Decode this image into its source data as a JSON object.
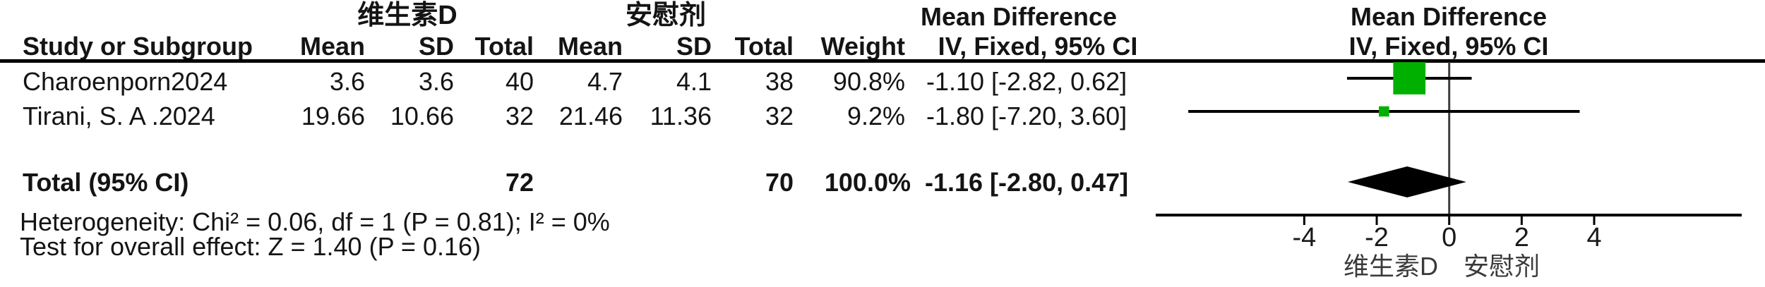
{
  "table": {
    "group_headers": {
      "experimental": "维生素D",
      "control": "安慰剂",
      "effect": "Mean Difference",
      "plot_effect": "Mean Difference"
    },
    "column_headers": {
      "study": "Study or Subgroup",
      "exp_mean": "Mean",
      "exp_sd": "SD",
      "exp_total": "Total",
      "ctrl_mean": "Mean",
      "ctrl_sd": "SD",
      "ctrl_total": "Total",
      "weight": "Weight",
      "effect_ci": "IV, Fixed, 95% CI",
      "plot_ci": "IV, Fixed, 95% CI"
    },
    "rows": [
      {
        "study": "Charoenporn2024",
        "exp_mean": "3.6",
        "exp_sd": "3.6",
        "exp_total": "40",
        "ctrl_mean": "4.7",
        "ctrl_sd": "4.1",
        "ctrl_total": "38",
        "weight": "90.8%",
        "ci_text": "-1.10 [-2.82, 0.62]"
      },
      {
        "study": "Tirani, S. A .2024",
        "exp_mean": "19.66",
        "exp_sd": "10.66",
        "exp_total": "32",
        "ctrl_mean": "21.46",
        "ctrl_sd": "11.36",
        "ctrl_total": "32",
        "weight": "9.2%",
        "ci_text": "-1.80 [-7.20, 3.60]"
      }
    ],
    "total_row": {
      "label": "Total (95% CI)",
      "exp_total": "72",
      "ctrl_total": "70",
      "weight": "100.0%",
      "ci_text": "-1.16 [-2.80, 0.47]"
    },
    "footnotes": {
      "heterogeneity": "Heterogeneity: Chi² = 0.06, df = 1 (P = 0.81); I² = 0%",
      "overall_effect": "Test for overall effect: Z = 1.40 (P = 0.16)"
    }
  },
  "chart_data": {
    "type": "forest",
    "effect_measure": "Mean Difference",
    "model": "IV, Fixed, 95% CI",
    "x_axis": {
      "ticks": [
        -4,
        -2,
        0,
        2,
        4
      ],
      "min": -8.1,
      "max": 8.1,
      "zero_line": 0
    },
    "studies": [
      {
        "name": "Charoenporn2024",
        "md": -1.1,
        "ci_low": -2.82,
        "ci_high": 0.62,
        "weight_pct": 90.8
      },
      {
        "name": "Tirani, S. A .2024",
        "md": -1.8,
        "ci_low": -7.2,
        "ci_high": 3.6,
        "weight_pct": 9.2
      }
    ],
    "total": {
      "md": -1.16,
      "ci_low": -2.8,
      "ci_high": 0.47
    },
    "favours_left": "维生素D",
    "favours_right": "安慰剂",
    "marker_color": "#00b000",
    "diamond_color": "#000000"
  }
}
